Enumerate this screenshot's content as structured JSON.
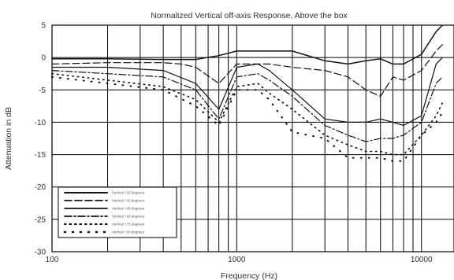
{
  "chart_data": {
    "type": "line",
    "title": "Normalized Vertical off-axis Response, Above the box",
    "xlabel": "Frequency (Hz)",
    "ylabel": "Attenuation in dB",
    "x_scale": "log",
    "xlim": [
      100,
      15000
    ],
    "ylim": [
      -30,
      5
    ],
    "x_ticks": [
      100,
      1000,
      10000
    ],
    "x_tick_labels": [
      "100",
      "1000",
      "10000"
    ],
    "y_ticks": [
      5,
      0,
      -5,
      -10,
      -15,
      -20,
      -25,
      -30
    ],
    "y_tick_labels": [
      "5",
      "0",
      "-5",
      "-10",
      "-15",
      "-20",
      "-25",
      "-30"
    ],
    "grid": true,
    "legend_position": "lower-left",
    "series": [
      {
        "name": "Vertical +15 degrees",
        "x": [
          100,
          200,
          400,
          600,
          800,
          1000,
          1500,
          2000,
          3000,
          4000,
          5000,
          6000,
          7000,
          8000,
          10000,
          12000,
          13000
        ],
        "y": [
          -0.2,
          -0.2,
          -0.3,
          -0.3,
          0.3,
          1.0,
          1.0,
          1.0,
          -0.5,
          -1.0,
          -0.5,
          -0.2,
          -1.0,
          -1.0,
          0.5,
          4.0,
          5.0
        ]
      },
      {
        "name": "Vertical +30 degrees",
        "x": [
          100,
          200,
          400,
          500,
          600,
          800,
          1000,
          1500,
          2000,
          3000,
          4000,
          5000,
          6000,
          7000,
          8000,
          10000,
          12000,
          13000
        ],
        "y": [
          -1.0,
          -0.8,
          -0.8,
          -1.0,
          -1.5,
          -4.0,
          -1.0,
          -1.0,
          -1.5,
          -2.0,
          -3.0,
          -5.0,
          -6.0,
          -3.0,
          -3.5,
          -2.0,
          1.0,
          2.0
        ]
      },
      {
        "name": "Vertical +45 degrees",
        "x": [
          100,
          200,
          400,
          600,
          800,
          1000,
          1300,
          1500,
          2000,
          3000,
          4000,
          5000,
          6000,
          7000,
          8000,
          10000,
          12000,
          13000
        ],
        "y": [
          -1.5,
          -1.5,
          -2.0,
          -4.0,
          -8.0,
          -1.5,
          -1.0,
          -2.0,
          -5.0,
          -9.5,
          -10.0,
          -10.0,
          -9.5,
          -10.0,
          -10.5,
          -9.0,
          -1.0,
          0.0
        ]
      },
      {
        "name": "Vertical +60 degrees",
        "x": [
          100,
          200,
          400,
          600,
          800,
          1000,
          1300,
          1500,
          2000,
          3000,
          4000,
          5000,
          6000,
          7000,
          8000,
          10000,
          12000,
          13000
        ],
        "y": [
          -2.0,
          -2.5,
          -3.0,
          -5.0,
          -9.5,
          -3.0,
          -2.5,
          -3.5,
          -6.0,
          -10.5,
          -12.0,
          -13.0,
          -12.5,
          -12.5,
          -12.0,
          -10.0,
          -4.0,
          -3.0
        ]
      },
      {
        "name": "Vertical +75 degrees",
        "x": [
          100,
          200,
          400,
          600,
          800,
          1000,
          1300,
          1500,
          2000,
          3000,
          4000,
          5000,
          6000,
          7000,
          8000,
          10000,
          12000,
          13000
        ],
        "y": [
          -2.5,
          -3.5,
          -4.5,
          -6.5,
          -10.0,
          -4.5,
          -4.0,
          -5.5,
          -8.0,
          -12.0,
          -13.5,
          -14.5,
          -14.5,
          -15.0,
          -15.0,
          -12.0,
          -9.0,
          -7.0
        ]
      },
      {
        "name": "Vertical +90 degrees",
        "x": [
          100,
          200,
          400,
          600,
          800,
          1000,
          1300,
          1500,
          2000,
          3000,
          4000,
          5000,
          6000,
          7000,
          8000,
          10000,
          12000,
          13000
        ],
        "y": [
          -3.0,
          -4.0,
          -5.0,
          -7.5,
          -10.5,
          -5.0,
          -5.0,
          -6.5,
          -11.5,
          -12.5,
          -15.5,
          -15.5,
          -15.5,
          -16.0,
          -16.0,
          -12.0,
          -10.0,
          -8.5
        ]
      }
    ]
  }
}
